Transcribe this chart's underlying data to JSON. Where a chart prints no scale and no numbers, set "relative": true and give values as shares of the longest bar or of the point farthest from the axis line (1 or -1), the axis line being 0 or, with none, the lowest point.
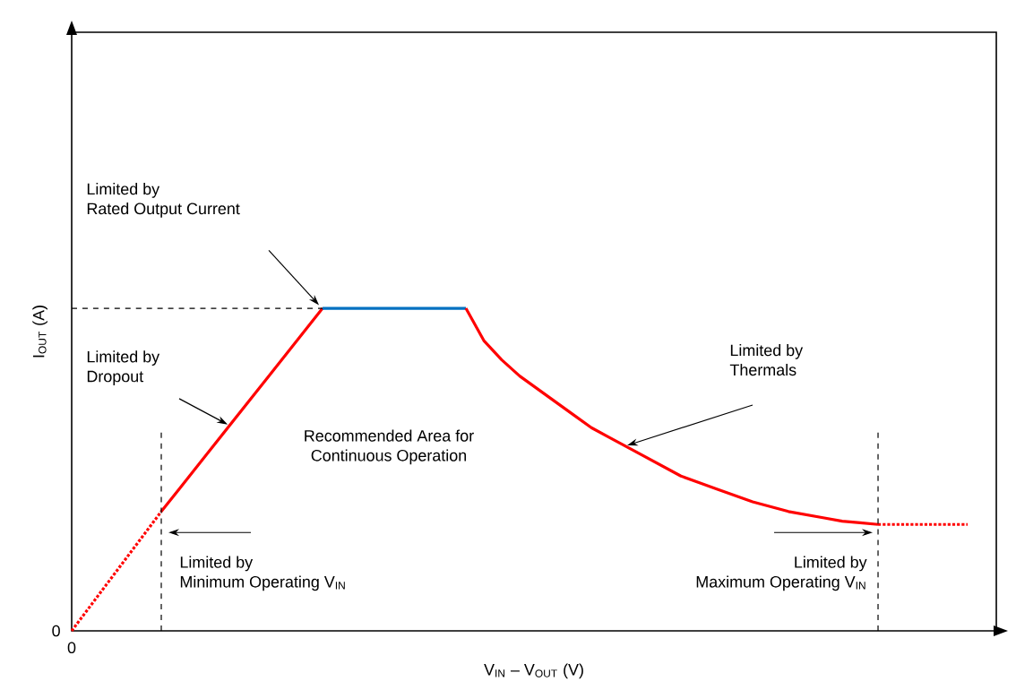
{
  "chart_data": {
    "type": "line",
    "relative": true,
    "xlabel": "V$_{IN}$ – V$_{OUT}$ (V)",
    "ylabel": "I$_{OUT}$ (A)",
    "categories": [
      null,
      null,
      null,
      null,
      null,
      null,
      null,
      null,
      null,
      null,
      null,
      null,
      null,
      null,
      null,
      null,
      null,
      null,
      null,
      null,
      null,
      null,
      null,
      null,
      null,
      null,
      null,
      null,
      null,
      null,
      null,
      null,
      null,
      null,
      null,
      null,
      null,
      null,
      null,
      null,
      null,
      null,
      null,
      null,
      null,
      null,
      null,
      null,
      null,
      null,
      null
    ],
    "series": [
      {
        "color": "#ff0000",
        "line_style": "dotted",
        "values": [
          0,
          0.074,
          0.148,
          0.222,
          0.296,
          0.37,
          null,
          null,
          null,
          null,
          null,
          null,
          null,
          null,
          null,
          null,
          null,
          null,
          null,
          null,
          null,
          null,
          null,
          null,
          null,
          null,
          null,
          null,
          null,
          null,
          null,
          null,
          null,
          null,
          null,
          null,
          null,
          null,
          null,
          null,
          null,
          null,
          null,
          null,
          null,
          null,
          null,
          null,
          null,
          null,
          null
        ]
      },
      {
        "color": "#ff0000",
        "line_style": "solid",
        "values": [
          null,
          null,
          null,
          null,
          null,
          0.37,
          0.44,
          0.51,
          0.58,
          0.65,
          0.72,
          0.79,
          0.86,
          0.93,
          1,
          null,
          null,
          null,
          null,
          null,
          null,
          null,
          null,
          null,
          null,
          null,
          null,
          null,
          null,
          null,
          null,
          null,
          null,
          null,
          null,
          null,
          null,
          null,
          null,
          null,
          null,
          null,
          null,
          null,
          null,
          null,
          null,
          null,
          null,
          null,
          null
        ]
      },
      {
        "color": "#0070c0",
        "line_style": "solid",
        "values": [
          null,
          null,
          null,
          null,
          null,
          null,
          null,
          null,
          null,
          null,
          null,
          null,
          null,
          null,
          1,
          1,
          1,
          1,
          1,
          1,
          1,
          1,
          1,
          null,
          null,
          null,
          null,
          null,
          null,
          null,
          null,
          null,
          null,
          null,
          null,
          null,
          null,
          null,
          null,
          null,
          null,
          null,
          null,
          null,
          null,
          null,
          null,
          null,
          null,
          null,
          null
        ]
      },
      {
        "color": "#ff0000",
        "line_style": "solid",
        "values": [
          null,
          null,
          null,
          null,
          null,
          null,
          null,
          null,
          null,
          null,
          null,
          null,
          null,
          null,
          null,
          null,
          null,
          null,
          null,
          null,
          null,
          null,
          1,
          0.9,
          0.84,
          0.79,
          0.75,
          0.71,
          0.67,
          0.63,
          0.6,
          0.57,
          0.54,
          0.51,
          0.48,
          0.46,
          0.44,
          0.42,
          0.4,
          0.385,
          0.37,
          0.36,
          0.35,
          0.34,
          0.335,
          0.33,
          null,
          null,
          null,
          null,
          null
        ]
      },
      {
        "color": "#ff0000",
        "line_style": "dotted",
        "values": [
          null,
          null,
          null,
          null,
          null,
          null,
          null,
          null,
          null,
          null,
          null,
          null,
          null,
          null,
          null,
          null,
          null,
          null,
          null,
          null,
          null,
          null,
          null,
          null,
          null,
          null,
          null,
          null,
          null,
          null,
          null,
          null,
          null,
          null,
          null,
          null,
          null,
          null,
          null,
          null,
          null,
          null,
          null,
          null,
          null,
          0.33,
          0.33,
          0.33,
          0.33,
          0.33,
          0.33
        ]
      },
      {
        "color": "#000000",
        "line_style": "dashed",
        "values": [
          1,
          1,
          1,
          1,
          1,
          1,
          1,
          1,
          1,
          1,
          1,
          1,
          1,
          1,
          1,
          null,
          null,
          null,
          null,
          null,
          null,
          null,
          null,
          null,
          null,
          null,
          null,
          null,
          null,
          null,
          null,
          null,
          null,
          null,
          null,
          null,
          null,
          null,
          null,
          null,
          null,
          null,
          null,
          null,
          null,
          null,
          null,
          null,
          null,
          null,
          null
        ]
      }
    ],
    "annotations": [
      "Limited by",
      "Rated Output Current",
      "Limited by",
      "Dropout",
      "Recommended Area for",
      "Continuous Operation",
      "Limited by",
      "Thermals",
      "Limited by",
      "Minimum Operating V$_{IN}$",
      "Limited by",
      "Maximum Operating V$_{IN}$",
      "0",
      "0"
    ]
  }
}
